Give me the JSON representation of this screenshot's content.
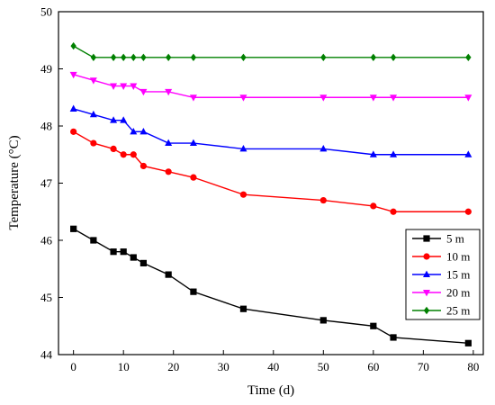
{
  "chart_data": {
    "type": "line",
    "title": "",
    "xlabel": "Time (d)",
    "ylabel": "Temperature (°C)",
    "xlim": [
      -3,
      82
    ],
    "ylim": [
      44,
      50
    ],
    "xticks": [
      0,
      10,
      20,
      30,
      40,
      50,
      60,
      70,
      80
    ],
    "yticks": [
      44,
      45,
      46,
      47,
      48,
      49,
      50
    ],
    "grid": false,
    "legend_position": "bottom-right",
    "x": [
      0,
      4,
      8,
      10,
      12,
      14,
      19,
      24,
      34,
      50,
      60,
      64,
      79
    ],
    "series": [
      {
        "name": "5 m",
        "color": "#000000",
        "marker": "square",
        "values": [
          46.2,
          46.0,
          45.8,
          45.8,
          45.7,
          45.6,
          45.4,
          45.1,
          44.8,
          44.6,
          44.5,
          44.3,
          44.2
        ]
      },
      {
        "name": "10 m",
        "color": "#ff0000",
        "marker": "circle",
        "values": [
          47.9,
          47.7,
          47.6,
          47.5,
          47.5,
          47.3,
          47.2,
          47.1,
          46.8,
          46.7,
          46.6,
          46.5,
          46.5
        ]
      },
      {
        "name": "15 m",
        "color": "#0000ff",
        "marker": "triangle-up",
        "values": [
          48.3,
          48.2,
          48.1,
          48.1,
          47.9,
          47.9,
          47.7,
          47.7,
          47.6,
          47.6,
          47.5,
          47.5,
          47.5
        ]
      },
      {
        "name": "20 m",
        "color": "#ff00ff",
        "marker": "triangle-down",
        "values": [
          48.9,
          48.8,
          48.7,
          48.7,
          48.7,
          48.6,
          48.6,
          48.5,
          48.5,
          48.5,
          48.5,
          48.5,
          48.5
        ]
      },
      {
        "name": "25 m",
        "color": "#008000",
        "marker": "diamond",
        "values": [
          49.4,
          49.2,
          49.2,
          49.2,
          49.2,
          49.2,
          49.2,
          49.2,
          49.2,
          49.2,
          49.2,
          49.2,
          49.2
        ]
      }
    ]
  }
}
